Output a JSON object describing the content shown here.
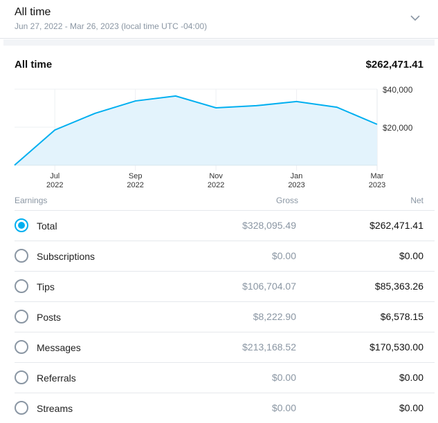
{
  "header": {
    "title": "All time",
    "subtitle": "Jun 27, 2022 - Mar 26, 2023 (local time UTC -04:00)"
  },
  "summary": {
    "label": "All time",
    "total": "$262,471.41"
  },
  "chart_data": {
    "type": "area",
    "x": [
      "Jun 2022",
      "Jul 2022",
      "Aug 2022",
      "Sep 2022",
      "Oct 2022",
      "Nov 2022",
      "Dec 2022",
      "Jan 2023",
      "Feb 2023",
      "Mar 2023"
    ],
    "values": [
      0,
      18500,
      27300,
      33800,
      36400,
      30200,
      31300,
      33500,
      30500,
      21500
    ],
    "ylim": [
      0,
      40000
    ],
    "yticks": [
      "$40,000",
      "$20,000"
    ],
    "xticks": [
      {
        "m": "Jul",
        "y": "2022"
      },
      {
        "m": "Sep",
        "y": "2022"
      },
      {
        "m": "Nov",
        "y": "2022"
      },
      {
        "m": "Jan",
        "y": "2023"
      },
      {
        "m": "Mar",
        "y": "2023"
      }
    ],
    "color": "#00aff0",
    "fill": "#e3f3fc"
  },
  "table": {
    "headers": {
      "earnings": "Earnings",
      "gross": "Gross",
      "net": "Net"
    },
    "rows": [
      {
        "label": "Total",
        "gross": "$328,095.49",
        "net": "$262,471.41",
        "selected": true
      },
      {
        "label": "Subscriptions",
        "gross": "$0.00",
        "net": "$0.00"
      },
      {
        "label": "Tips",
        "gross": "$106,704.07",
        "net": "$85,363.26"
      },
      {
        "label": "Posts",
        "gross": "$8,222.90",
        "net": "$6,578.15"
      },
      {
        "label": "Messages",
        "gross": "$213,168.52",
        "net": "$170,530.00"
      },
      {
        "label": "Referrals",
        "gross": "$0.00",
        "net": "$0.00"
      },
      {
        "label": "Streams",
        "gross": "$0.00",
        "net": "$0.00"
      }
    ]
  }
}
